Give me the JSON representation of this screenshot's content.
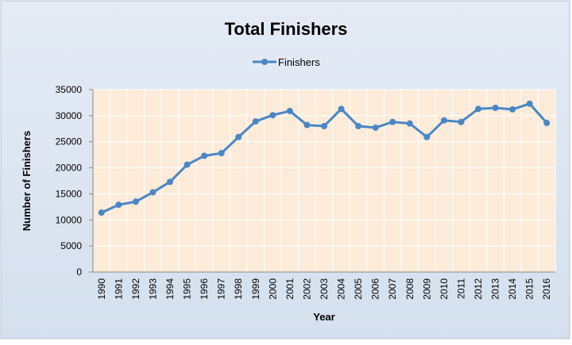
{
  "chart_data": {
    "type": "line",
    "title": "Total Finishers",
    "x_label": "Year",
    "y_label": "Number of Finishers",
    "categories": [
      "1990",
      "1991",
      "1992",
      "1993",
      "1994",
      "1995",
      "1996",
      "1997",
      "1998",
      "1999",
      "2000",
      "2001",
      "2002",
      "2003",
      "2004",
      "2005",
      "2006",
      "2007",
      "2008",
      "2009",
      "2010",
      "2011",
      "2012",
      "2013",
      "2014",
      "2015",
      "2016"
    ],
    "series": [
      {
        "name": "Finishers",
        "color": "#4a86c5",
        "values": [
          11400,
          12900,
          13500,
          15300,
          17300,
          20600,
          22300,
          22800,
          25900,
          28900,
          30100,
          30900,
          28200,
          28000,
          31300,
          28000,
          27700,
          28800,
          28500,
          25900,
          29100,
          28800,
          31300,
          31500,
          31200,
          32300,
          28600
        ]
      }
    ],
    "ylim": [
      0,
      35000
    ],
    "yticks": [
      0,
      5000,
      10000,
      15000,
      20000,
      25000,
      30000,
      35000
    ],
    "grid": true,
    "legend": "top"
  }
}
